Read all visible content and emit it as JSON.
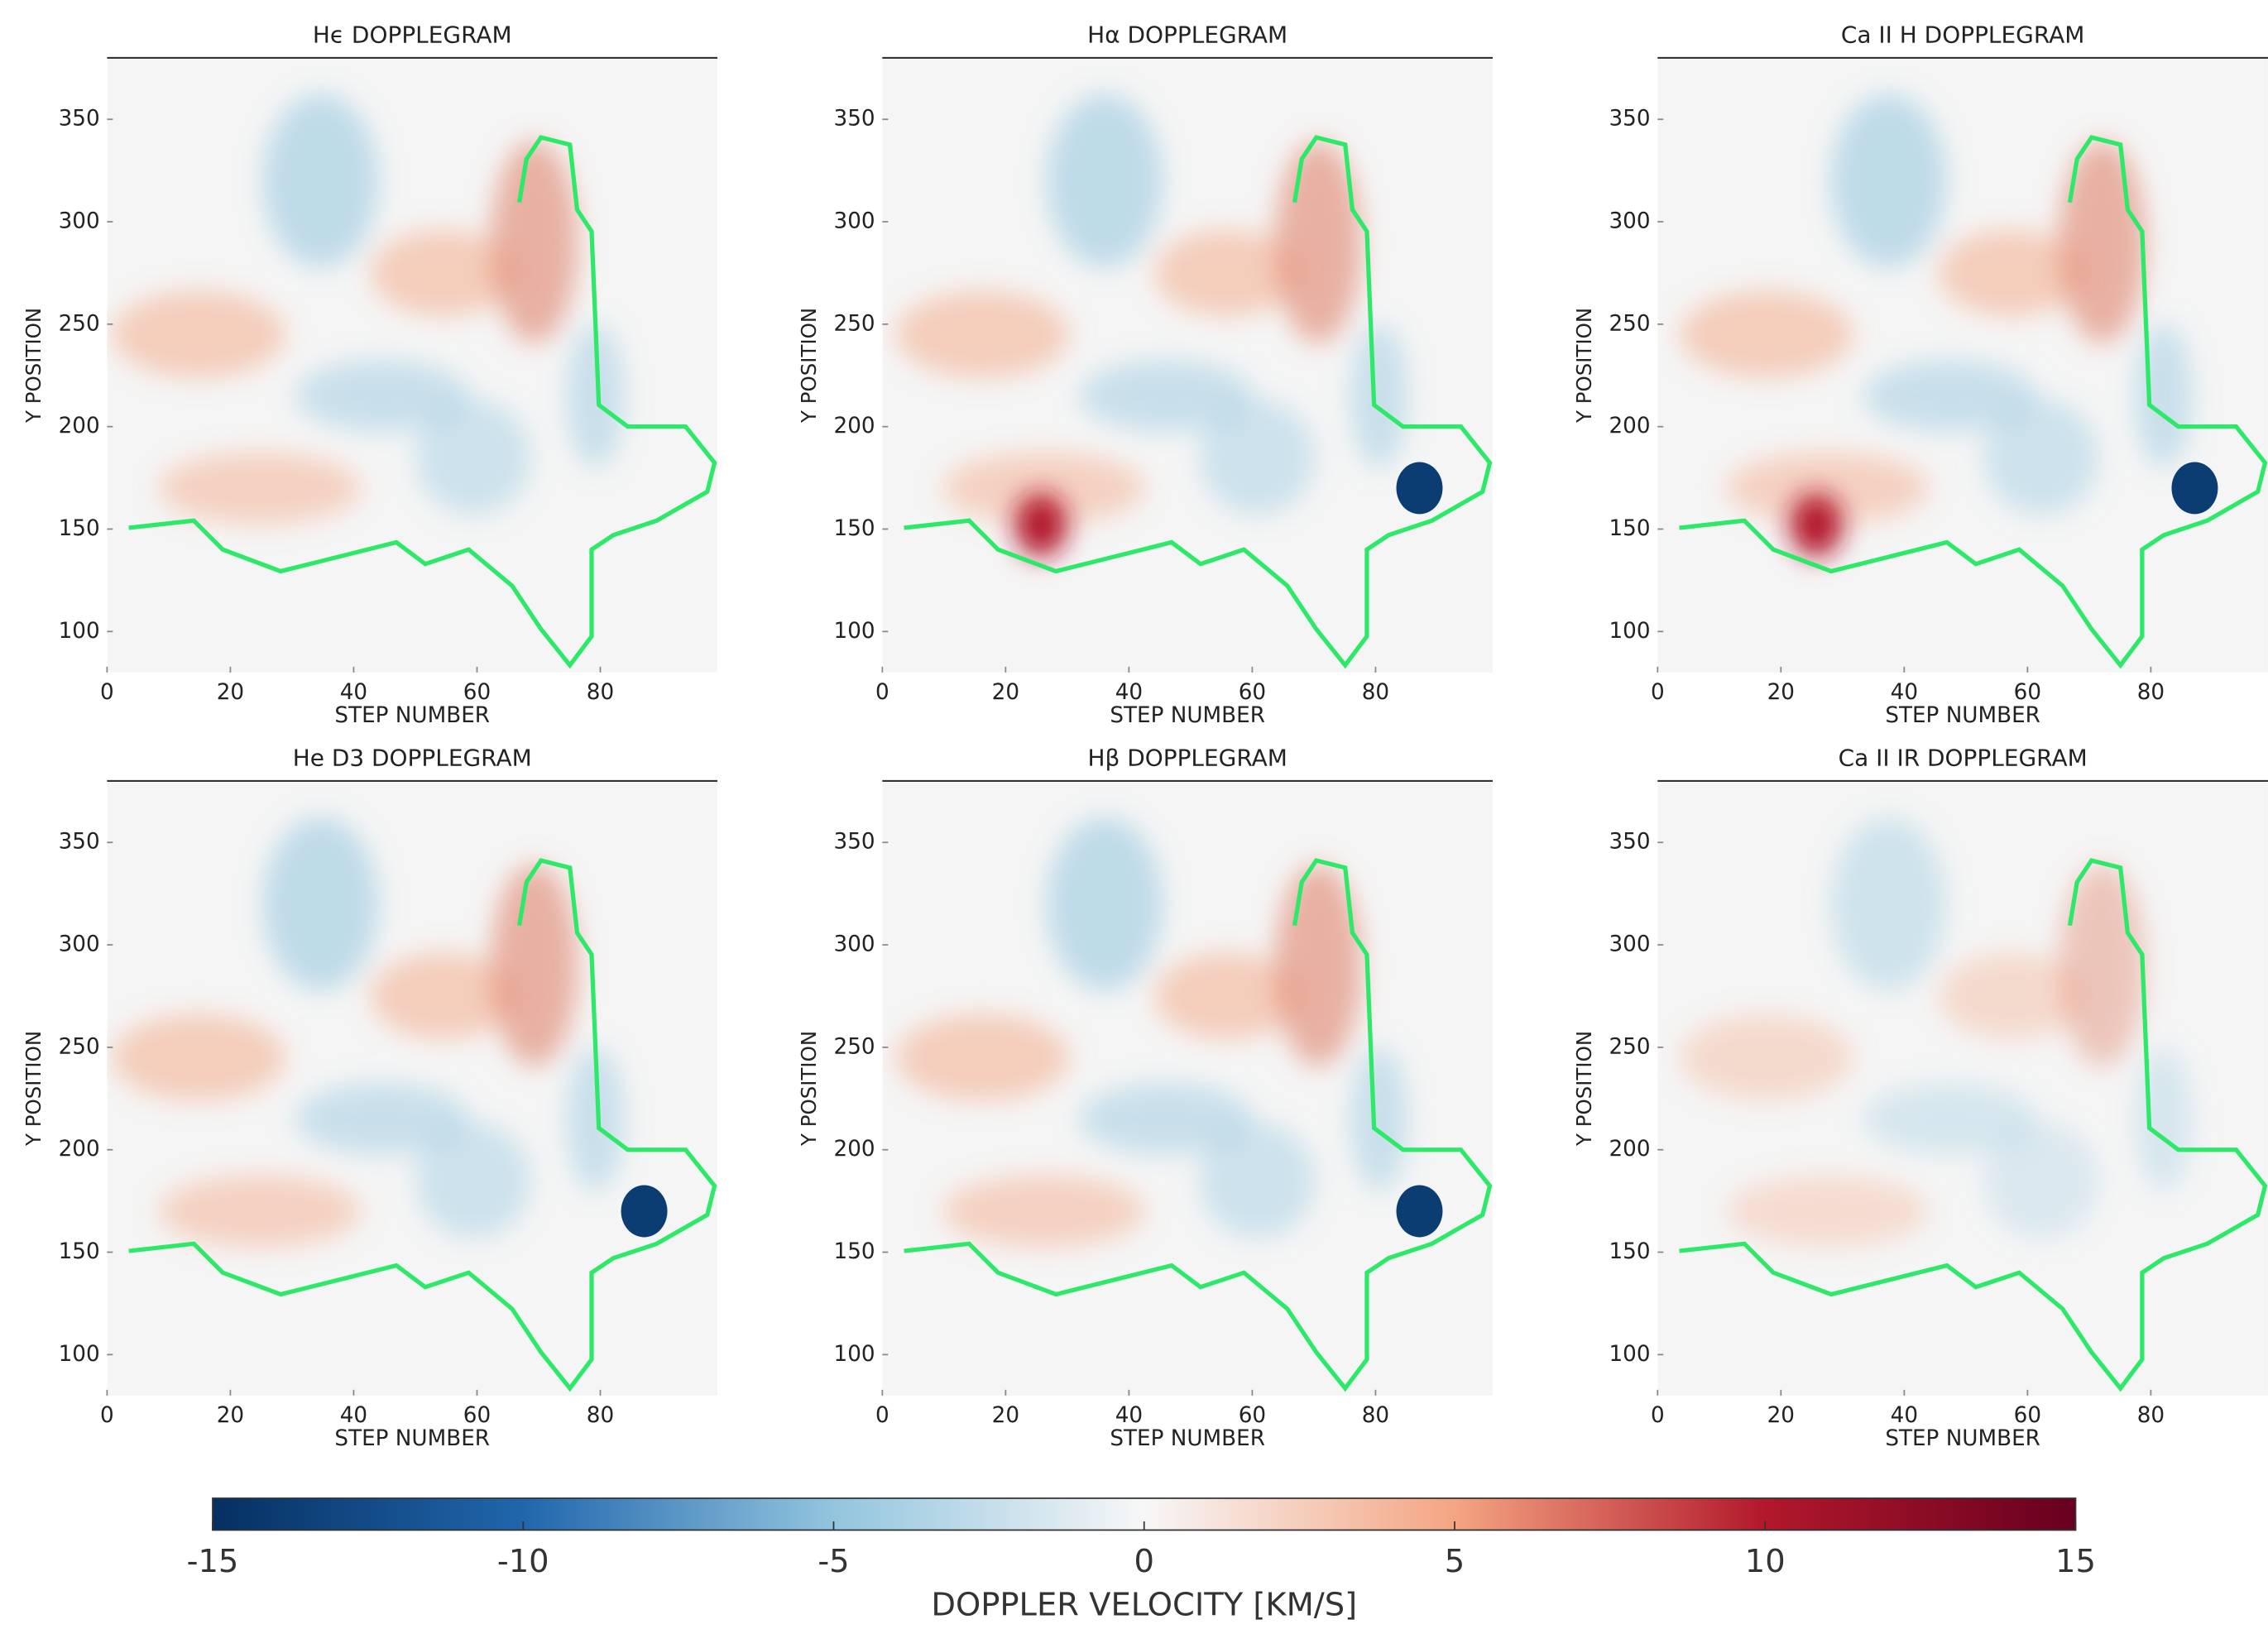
{
  "chart_data": [
    {
      "type": "heatmap",
      "title": "Hϵ DOPPLEGRAM",
      "xlabel": "STEP NUMBER",
      "ylabel": "Y POSITION",
      "xlim": [
        0,
        99
      ],
      "ylim": [
        80,
        380
      ],
      "xticks": [
        0,
        20,
        40,
        60,
        80
      ],
      "yticks": [
        100,
        150,
        200,
        250,
        300,
        350
      ]
    },
    {
      "type": "heatmap",
      "title": "Hα DOPPLEGRAM",
      "xlabel": "STEP NUMBER",
      "ylabel": "Y POSITION",
      "xlim": [
        0,
        99
      ],
      "ylim": [
        80,
        380
      ],
      "xticks": [
        0,
        20,
        40,
        60,
        80
      ],
      "yticks": [
        100,
        150,
        200,
        250,
        300,
        350
      ]
    },
    {
      "type": "heatmap",
      "title": "Ca II H DOPPLEGRAM",
      "xlabel": "STEP NUMBER",
      "ylabel": "Y POSITION",
      "xlim": [
        0,
        99
      ],
      "ylim": [
        80,
        380
      ],
      "xticks": [
        0,
        20,
        40,
        60,
        80
      ],
      "yticks": [
        100,
        150,
        200,
        250,
        300,
        350
      ]
    },
    {
      "type": "heatmap",
      "title": "He D3 DOPPLEGRAM",
      "xlabel": "STEP NUMBER",
      "ylabel": "Y POSITION",
      "xlim": [
        0,
        99
      ],
      "ylim": [
        80,
        380
      ],
      "xticks": [
        0,
        20,
        40,
        60,
        80
      ],
      "yticks": [
        100,
        150,
        200,
        250,
        300,
        350
      ]
    },
    {
      "type": "heatmap",
      "title": "Hβ DOPPLEGRAM",
      "xlabel": "STEP NUMBER",
      "ylabel": "Y POSITION",
      "xlim": [
        0,
        99
      ],
      "ylim": [
        80,
        380
      ],
      "xticks": [
        0,
        20,
        40,
        60,
        80
      ],
      "yticks": [
        100,
        150,
        200,
        250,
        300,
        350
      ]
    },
    {
      "type": "heatmap",
      "title": "Ca II IR DOPPLEGRAM",
      "xlabel": "STEP NUMBER",
      "ylabel": "Y POSITION",
      "xlim": [
        0,
        99
      ],
      "ylim": [
        80,
        380
      ],
      "xticks": [
        0,
        20,
        40,
        60,
        80
      ],
      "yticks": [
        100,
        150,
        200,
        250,
        300,
        350
      ]
    },
    {
      "type": "colorbar",
      "xlabel": "DOPPLER VELOCITY [KM/S]",
      "xlim": [
        -15,
        15
      ],
      "xticks": [
        -15,
        -10,
        -5,
        0,
        5,
        10,
        15
      ],
      "colormap": [
        "#053061",
        "#2166ac",
        "#92c5de",
        "#f7f7f7",
        "#f4a582",
        "#b2182b",
        "#67001f"
      ]
    }
  ]
}
